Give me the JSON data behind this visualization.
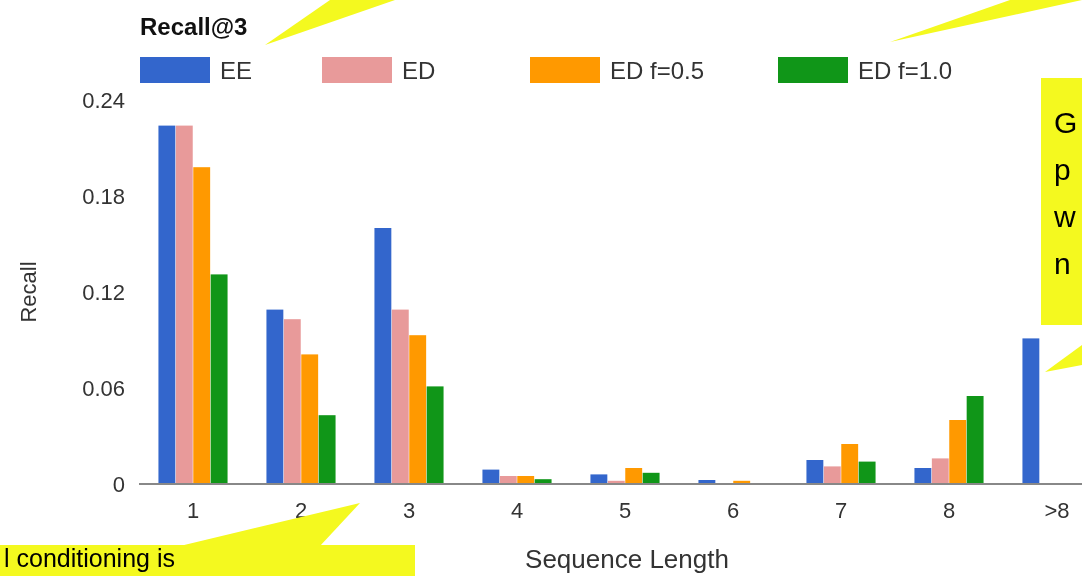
{
  "chart_data": {
    "type": "bar",
    "title": "Recall@3",
    "xlabel": "Sequence Length",
    "ylabel": "Recall",
    "categories": [
      "1",
      "2",
      "3",
      "4",
      "5",
      "6",
      "7",
      "8",
      ">8"
    ],
    "series": [
      {
        "name": "EE",
        "color": "#3366cc",
        "values": [
          0.224,
          0.109,
          0.16,
          0.009,
          0.006,
          0.0025,
          0.015,
          0.01,
          0.091
        ]
      },
      {
        "name": "ED",
        "color": "#e89a9a",
        "values": [
          0.224,
          0.103,
          0.109,
          0.005,
          0.002,
          0,
          0.011,
          0.016,
          null
        ]
      },
      {
        "name": "ED f=0.5",
        "color": "#ff9900",
        "values": [
          0.198,
          0.081,
          0.093,
          0.005,
          0.01,
          0.002,
          0.025,
          0.04,
          null
        ]
      },
      {
        "name": "ED f=1.0",
        "color": "#109618",
        "values": [
          0.131,
          0.043,
          0.061,
          0.003,
          0.007,
          0,
          0.014,
          0.055,
          null
        ]
      }
    ],
    "ylim": [
      0,
      0.24
    ],
    "yticks": [
      0,
      0.06,
      0.12,
      0.18,
      0.24
    ],
    "grid": false,
    "legend": "top",
    "annotations": [
      "l conditioning is",
      "G",
      "p",
      "w",
      "n"
    ]
  }
}
